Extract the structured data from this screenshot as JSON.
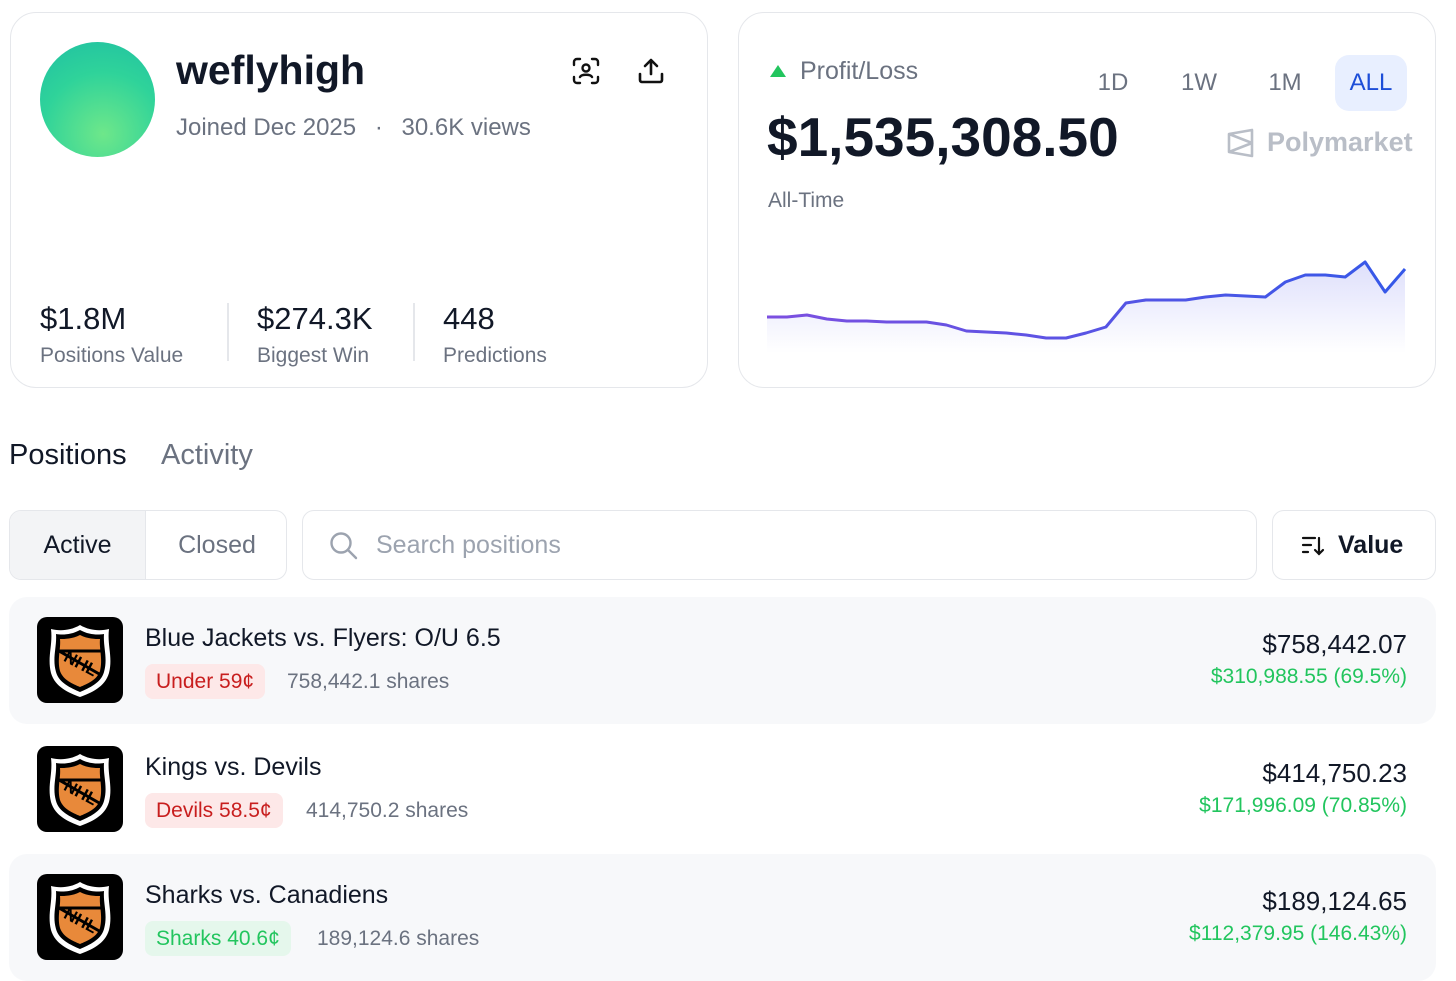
{
  "profile": {
    "name": "weflyhigh",
    "joined": "Joined Dec 2025",
    "separator": "·",
    "views": "30.6K views",
    "stats": [
      {
        "value": "$1.8M",
        "label": "Positions Value"
      },
      {
        "value": "$274.3K",
        "label": "Biggest Win"
      },
      {
        "value": "448",
        "label": "Predictions"
      }
    ]
  },
  "pnl": {
    "label": "Profit/Loss",
    "ranges": [
      "1D",
      "1W",
      "1M",
      "ALL"
    ],
    "active_range": 3,
    "amount": "$1,535,308.50",
    "period": "All-Time",
    "brand": "Polymarket",
    "chart": {
      "type": "line",
      "color": "#5b50e6",
      "ylim": [
        0,
        100
      ],
      "values": [
        30,
        30,
        32,
        28,
        26,
        26,
        25,
        25,
        25,
        22,
        16,
        15,
        14,
        12,
        9,
        9,
        14,
        20,
        44,
        47,
        47,
        47,
        50,
        52,
        51,
        50,
        65,
        72,
        72,
        70,
        85,
        55,
        78
      ]
    }
  },
  "tabs": [
    "Positions",
    "Activity"
  ],
  "active_tab": 0,
  "filters": [
    "Active",
    "Closed"
  ],
  "active_filter": 0,
  "search_placeholder": "Search positions",
  "sort": "Value",
  "positions": [
    {
      "title": "Blue Jackets vs. Flyers: O/U 6.5",
      "outcome": "Under 59¢",
      "tone": "red",
      "shares": "758,442.1 shares",
      "value": "$758,442.07",
      "pnl": "$310,988.55 (69.5%)"
    },
    {
      "title": "Kings vs. Devils",
      "outcome": "Devils 58.5¢",
      "tone": "red",
      "shares": "414,750.2 shares",
      "value": "$414,750.23",
      "pnl": "$171,996.09 (70.85%)"
    },
    {
      "title": "Sharks vs. Canadiens",
      "outcome": "Sharks 40.6¢",
      "tone": "green",
      "shares": "189,124.6 shares",
      "value": "$189,124.65",
      "pnl": "$112,379.95 (146.43%)"
    }
  ]
}
